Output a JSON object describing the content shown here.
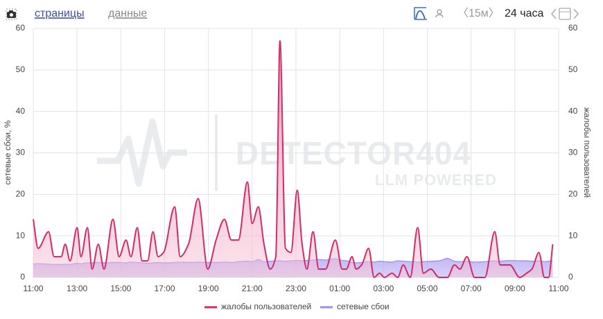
{
  "toolbar": {
    "tab_pages": "страницы",
    "tab_data": "данные",
    "interval": "〈15м〉",
    "range": "24 часа"
  },
  "watermark": {
    "title": "DETECTOR404",
    "subtitle": "LLM POWERED"
  },
  "chart_data": {
    "type": "area-line",
    "y_label": "сетевые сбои, %",
    "y2_label": "жалобы пользователей",
    "x": [
      0,
      0.22,
      0.7,
      0.95,
      1.27,
      1.46,
      1.68,
      2.0,
      2.18,
      2.47,
      2.69,
      2.97,
      3.23,
      3.64,
      3.92,
      4.24,
      4.46,
      4.75,
      4.97,
      5.22,
      5.47,
      5.7,
      5.95,
      6.46,
      6.71,
      7.09,
      7.53,
      7.97,
      8.35,
      8.73,
      9.05,
      9.37,
      9.78,
      10.0,
      10.28,
      10.54,
      10.82,
      11.08,
      11.27,
      11.52,
      11.77,
      12.06,
      12.28,
      12.5,
      12.78,
      13.04,
      13.35,
      13.8,
      14.11,
      14.3,
      14.56,
      14.75,
      15.0,
      15.32,
      15.57,
      15.82,
      16.04,
      16.39,
      16.65,
      16.9,
      17.22,
      17.56,
      17.82,
      18.16,
      18.54,
      18.92,
      19.24,
      19.49,
      19.81,
      20.16,
      20.63,
      21.08,
      21.33,
      21.77,
      22.22,
      22.53,
      22.78,
      23.1,
      23.35,
      23.54,
      23.73
    ],
    "series": [
      {
        "name": "жалобы пользователей",
        "color": "#d12a68",
        "fill": "#f2a6c0",
        "axis": "y2",
        "values": [
          14,
          7,
          11,
          5,
          5,
          8,
          4,
          12,
          5,
          12,
          2,
          8,
          2,
          14,
          5,
          9,
          5,
          12,
          4,
          4,
          11,
          5,
          6,
          17,
          5,
          8,
          19,
          2,
          9,
          14,
          9,
          9,
          23,
          13,
          17,
          8,
          2,
          5,
          57,
          7,
          6,
          21,
          8,
          2,
          11,
          2,
          2,
          9,
          2,
          2,
          5,
          2,
          3,
          7,
          0,
          1,
          0,
          1,
          0,
          3,
          0,
          12,
          1,
          2,
          0,
          0,
          3,
          2,
          5,
          0,
          0,
          11,
          3,
          3,
          0,
          1,
          2,
          6,
          0,
          0,
          8
        ]
      },
      {
        "name": "сетевые сбои",
        "color": "#9b8fea",
        "fill": "#c4b9f2",
        "values": [
          3.2,
          3.3,
          3.2,
          3.1,
          3.1,
          3.2,
          3.1,
          3.4,
          3.3,
          3.5,
          3.5,
          3.6,
          3.5,
          3.6,
          3.6,
          3.5,
          3.7,
          3.6,
          3.5,
          3.4,
          3.5,
          3.6,
          3.5,
          3.6,
          3.7,
          3.6,
          3.7,
          3.6,
          3.6,
          3.7,
          3.6,
          3.8,
          3.9,
          3.8,
          4.3,
          3.8,
          3.9,
          4.0,
          4.0,
          3.9,
          4.0,
          4.1,
          4.0,
          4.1,
          4.2,
          4.3,
          4.2,
          4.5,
          4.1,
          4.0,
          3.6,
          3.5,
          3.6,
          3.8,
          3.7,
          3.9,
          3.8,
          3.7,
          4.0,
          3.9,
          3.8,
          3.7,
          3.8,
          3.9,
          4.0,
          4.6,
          3.9,
          3.8,
          3.9,
          3.7,
          3.8,
          4.0,
          3.9,
          4.1,
          4.0,
          4.0,
          3.9,
          4.0,
          3.8,
          3.9,
          4.0
        ]
      }
    ],
    "xlim": [
      0,
      24
    ],
    "xticks": [
      {
        "value": 0,
        "label": "11:00"
      },
      {
        "value": 2,
        "label": "13:00"
      },
      {
        "value": 4,
        "label": "15:00"
      },
      {
        "value": 6,
        "label": "17:00"
      },
      {
        "value": 8,
        "label": "19:00"
      },
      {
        "value": 10,
        "label": "21:00"
      },
      {
        "value": 12,
        "label": "23:00"
      },
      {
        "value": 14,
        "label": "01:00"
      },
      {
        "value": 16,
        "label": "03:00"
      },
      {
        "value": 18,
        "label": "05:00"
      },
      {
        "value": 20,
        "label": "07:00"
      },
      {
        "value": 22,
        "label": "09:00"
      },
      {
        "value": 24,
        "label": "11:00"
      }
    ],
    "ylim": [
      0,
      60
    ],
    "yticks": [
      0,
      10,
      20,
      30,
      40,
      50,
      60
    ],
    "y2lim": [
      0,
      60
    ],
    "y2ticks": [
      0,
      10,
      20,
      30,
      40,
      50,
      60
    ],
    "grid": true,
    "legend": "bottom"
  }
}
